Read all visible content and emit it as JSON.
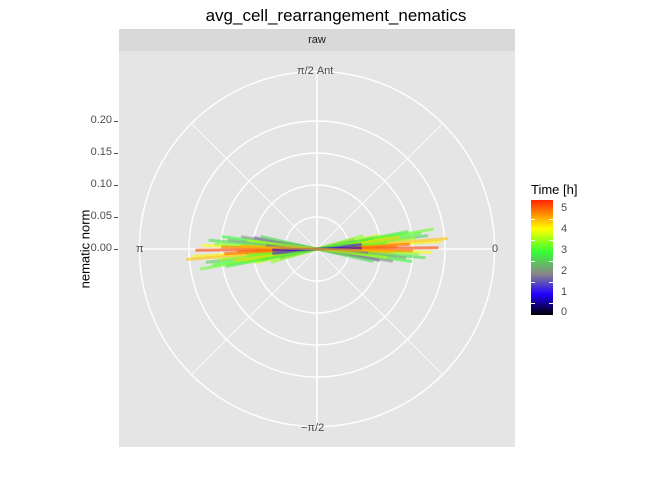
{
  "chart_data": {
    "type": "polar-segments",
    "title": "avg_cell_rearrangement_nematics",
    "facet_label": "raw",
    "ylabel": "nematic norm",
    "y_ticks": [
      "0.00",
      "0.05",
      "0.10",
      "0.15",
      "0.20"
    ],
    "ylim": [
      0,
      0.23
    ],
    "angle_labels": {
      "top": "π/2 Ant",
      "left": "π",
      "right": "0",
      "bottom": "−π/2"
    },
    "legend": {
      "title": "Time [h]",
      "ticks": [
        "0",
        "1",
        "2",
        "3",
        "4",
        "5"
      ],
      "range": [
        0,
        5.5
      ],
      "colors": [
        "#000000",
        "#2200ff",
        "#888888",
        "#33ff33",
        "#ffff00",
        "#ff2200"
      ]
    },
    "segments": [
      {
        "angle": 0.12,
        "norm": 0.175,
        "time": 2.6
      },
      {
        "angle": 0.15,
        "norm": 0.165,
        "time": 3.1
      },
      {
        "angle": 0.17,
        "norm": 0.185,
        "time": 3.3
      },
      {
        "angle": 0.11,
        "norm": 0.155,
        "time": 3.6
      },
      {
        "angle": 0.18,
        "norm": 0.115,
        "time": 3.9
      },
      {
        "angle": 0.06,
        "norm": 0.195,
        "time": 4.2
      },
      {
        "angle": 0.08,
        "norm": 0.205,
        "time": 4.5
      },
      {
        "angle": 0.03,
        "norm": 0.125,
        "time": 4.8
      },
      {
        "angle": 0.05,
        "norm": 0.145,
        "time": 5.1
      },
      {
        "angle": 0.01,
        "norm": 0.19,
        "time": 5.3
      },
      {
        "angle": -0.03,
        "norm": 0.18,
        "time": 4.1
      },
      {
        "angle": -0.05,
        "norm": 0.16,
        "time": 3.4
      },
      {
        "angle": -0.08,
        "norm": 0.17,
        "time": 2.8
      },
      {
        "angle": -0.1,
        "norm": 0.14,
        "time": 2.3
      },
      {
        "angle": -0.13,
        "norm": 0.15,
        "time": 3.0
      },
      {
        "angle": -0.16,
        "norm": 0.12,
        "time": 2.1
      },
      {
        "angle": -0.18,
        "norm": 0.1,
        "time": 1.8
      },
      {
        "angle": 0.2,
        "norm": 0.09,
        "time": 2.5
      },
      {
        "angle": 0.22,
        "norm": 0.1,
        "time": 3.8
      },
      {
        "angle": 0.25,
        "norm": 0.06,
        "time": 2.2
      },
      {
        "angle": 0.14,
        "norm": 0.13,
        "time": 4.4
      },
      {
        "angle": 0.09,
        "norm": 0.11,
        "time": 3.2
      },
      {
        "angle": -0.02,
        "norm": 0.15,
        "time": 5.0
      },
      {
        "angle": 0.04,
        "norm": 0.09,
        "time": 4.9
      },
      {
        "angle": -0.07,
        "norm": 0.08,
        "time": 1.5
      },
      {
        "angle": 0.28,
        "norm": 0.075,
        "time": 3.5
      },
      {
        "angle": -0.22,
        "norm": 0.09,
        "time": 2.7
      },
      {
        "angle": 0.1,
        "norm": 0.07,
        "time": 1.2
      },
      {
        "angle": -0.12,
        "norm": 0.11,
        "time": 3.7
      },
      {
        "angle": 0.19,
        "norm": 0.145,
        "time": 2.9
      },
      {
        "angle": 0.02,
        "norm": 0.07,
        "time": 0.9
      },
      {
        "angle": -0.04,
        "norm": 0.12,
        "time": 4.6
      }
    ]
  }
}
